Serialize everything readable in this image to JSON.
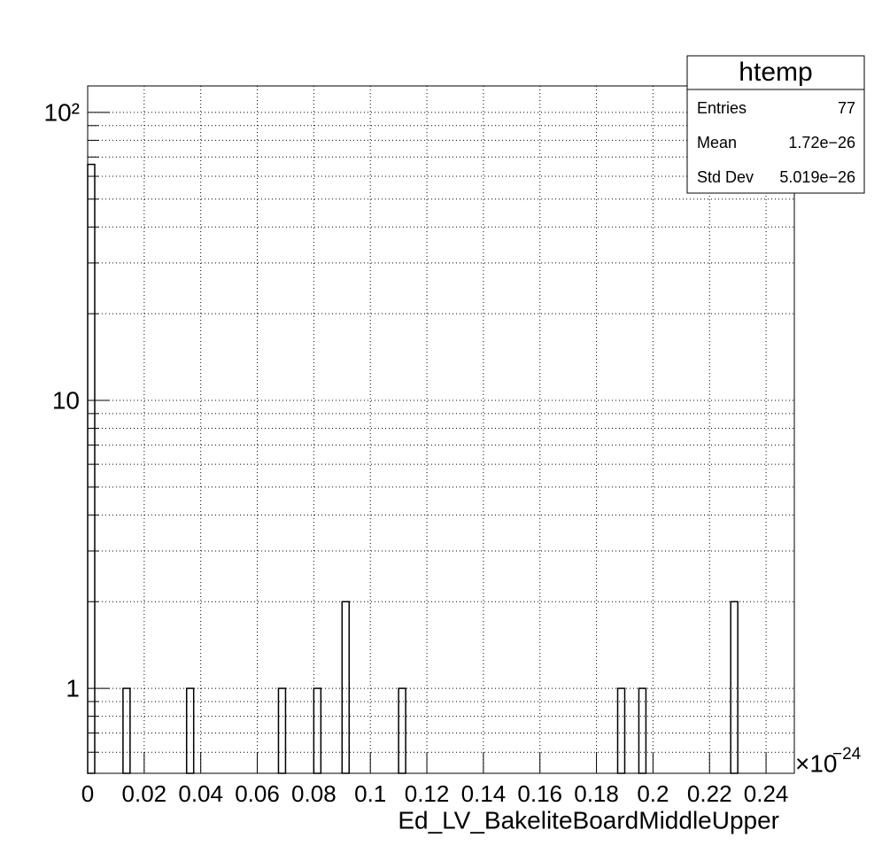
{
  "chart_data": {
    "type": "histogram",
    "x_label": "Ed_LV_BakeliteBoardMiddleUpper",
    "x_multiplier": "×10",
    "x_multiplier_exponent": "−24",
    "bins": [
      0,
      0.0025,
      0.005,
      0.0075,
      0.01,
      0.0125,
      0.015,
      0.0175,
      0.02,
      0.0225,
      0.025,
      0.0275,
      0.03,
      0.0325,
      0.035,
      0.0375,
      0.04,
      0.0425,
      0.045,
      0.0475,
      0.05,
      0.0525,
      0.055,
      0.0575,
      0.06,
      0.0625,
      0.065,
      0.0675,
      0.07,
      0.0725,
      0.075,
      0.0775,
      0.08,
      0.0825,
      0.085,
      0.0875,
      0.09,
      0.0925,
      0.095,
      0.0975,
      0.1,
      0.1025,
      0.105,
      0.1075,
      0.11,
      0.1125,
      0.115,
      0.1175,
      0.12,
      0.1225,
      0.125,
      0.1275,
      0.13,
      0.1325,
      0.135,
      0.1375,
      0.14,
      0.1425,
      0.145,
      0.1475,
      0.15,
      0.1525,
      0.155,
      0.1575,
      0.16,
      0.1625,
      0.165,
      0.1675,
      0.17,
      0.1725,
      0.175,
      0.1775,
      0.18,
      0.1825,
      0.185,
      0.1875,
      0.19,
      0.1925,
      0.195,
      0.1975,
      0.2,
      0.2025,
      0.205,
      0.2075,
      0.21,
      0.2125,
      0.215,
      0.2175,
      0.22,
      0.2225,
      0.225,
      0.2275,
      0.23,
      0.2325,
      0.235,
      0.2375,
      0.24,
      0.2425,
      0.245,
      0.2475,
      0.25
    ],
    "values": [
      66,
      0,
      0,
      0,
      0,
      1,
      0,
      0,
      0,
      0,
      0,
      0,
      0,
      0,
      1,
      0,
      0,
      0,
      0,
      0,
      0,
      0,
      0,
      0,
      0,
      0,
      0,
      1,
      0,
      0,
      0,
      0,
      1,
      0,
      0,
      0,
      2,
      0,
      0,
      0,
      0,
      0,
      0,
      0,
      1,
      0,
      0,
      0,
      0,
      0,
      0,
      0,
      0,
      0,
      0,
      0,
      0,
      0,
      0,
      0,
      0,
      0,
      0,
      0,
      0,
      0,
      0,
      0,
      0,
      0,
      0,
      0,
      0,
      0,
      0,
      1,
      0,
      0,
      1,
      0,
      0,
      0,
      0,
      0,
      0,
      0,
      0,
      0,
      0,
      0,
      0,
      2,
      0,
      0,
      0,
      0,
      0,
      0,
      0,
      0
    ],
    "color": "#000000",
    "xlim": [
      0,
      0.25
    ],
    "xticks": [
      0,
      0.02,
      0.04,
      0.06,
      0.08,
      0.1,
      0.12,
      0.14,
      0.16,
      0.18,
      0.2,
      0.22,
      0.24
    ],
    "ylim": [
      0.507,
      123.6
    ],
    "ylog": true,
    "yticks": [
      1,
      10,
      {
        "value": 100,
        "label": "10²"
      }
    ],
    "yminor": [
      0.6,
      0.7,
      0.8,
      0.9,
      2,
      3,
      4,
      5,
      6,
      7,
      8,
      9,
      20,
      30,
      40,
      50,
      60,
      70,
      80,
      90
    ],
    "grid": true,
    "stats": {
      "title": "htemp",
      "rows": [
        [
          "Entries",
          "77"
        ],
        [
          "Mean",
          "1.72e−26"
        ],
        [
          "Std Dev",
          "5.019e−26"
        ]
      ]
    }
  }
}
